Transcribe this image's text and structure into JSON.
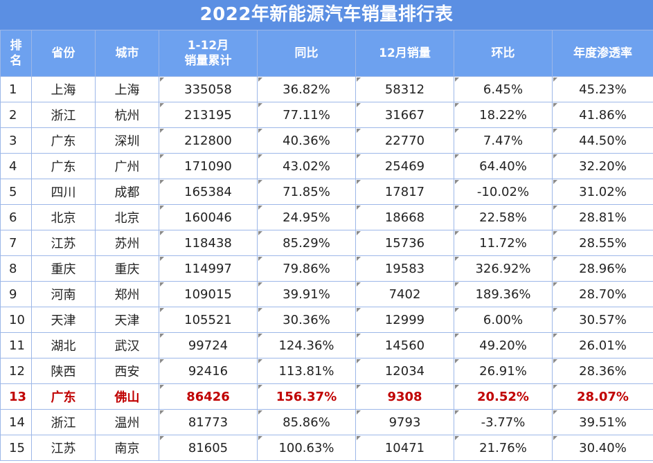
{
  "title": "2022年新能源汽车销量排行表",
  "headers": {
    "rank": [
      "排",
      "名"
    ],
    "province": "省份",
    "city": "城市",
    "cumulative": [
      "1-12月",
      "销量累计"
    ],
    "yoy": "同比",
    "dec_sales": "12月销量",
    "mom": "环比",
    "penetration": "年度渗透率"
  },
  "rows": [
    {
      "rank": "1",
      "province": "上海",
      "city": "上海",
      "cumulative": "335058",
      "yoy": "36.82%",
      "dec_sales": "58312",
      "mom": "6.45%",
      "penetration": "45.23%"
    },
    {
      "rank": "2",
      "province": "浙江",
      "city": "杭州",
      "cumulative": "213195",
      "yoy": "77.11%",
      "dec_sales": "31667",
      "mom": "18.22%",
      "penetration": "41.86%"
    },
    {
      "rank": "3",
      "province": "广东",
      "city": "深圳",
      "cumulative": "212800",
      "yoy": "40.36%",
      "dec_sales": "22770",
      "mom": "7.47%",
      "penetration": "44.50%"
    },
    {
      "rank": "4",
      "province": "广东",
      "city": "广州",
      "cumulative": "171090",
      "yoy": "43.02%",
      "dec_sales": "25469",
      "mom": "64.40%",
      "penetration": "32.20%"
    },
    {
      "rank": "5",
      "province": "四川",
      "city": "成都",
      "cumulative": "165384",
      "yoy": "71.85%",
      "dec_sales": "17817",
      "mom": "-10.02%",
      "penetration": "31.02%"
    },
    {
      "rank": "6",
      "province": "北京",
      "city": "北京",
      "cumulative": "160046",
      "yoy": "24.95%",
      "dec_sales": "18668",
      "mom": "22.58%",
      "penetration": "28.81%"
    },
    {
      "rank": "7",
      "province": "江苏",
      "city": "苏州",
      "cumulative": "118438",
      "yoy": "85.29%",
      "dec_sales": "15736",
      "mom": "11.72%",
      "penetration": "28.55%"
    },
    {
      "rank": "8",
      "province": "重庆",
      "city": "重庆",
      "cumulative": "114997",
      "yoy": "79.86%",
      "dec_sales": "19583",
      "mom": "326.92%",
      "penetration": "28.96%"
    },
    {
      "rank": "9",
      "province": "河南",
      "city": "郑州",
      "cumulative": "109015",
      "yoy": "39.91%",
      "dec_sales": "7402",
      "mom": "189.36%",
      "penetration": "28.70%"
    },
    {
      "rank": "10",
      "province": "天津",
      "city": "天津",
      "cumulative": "105521",
      "yoy": "30.36%",
      "dec_sales": "12999",
      "mom": "6.00%",
      "penetration": "30.57%"
    },
    {
      "rank": "11",
      "province": "湖北",
      "city": "武汉",
      "cumulative": "99724",
      "yoy": "124.36%",
      "dec_sales": "14560",
      "mom": "49.20%",
      "penetration": "26.01%"
    },
    {
      "rank": "12",
      "province": "陕西",
      "city": "西安",
      "cumulative": "92416",
      "yoy": "113.81%",
      "dec_sales": "12034",
      "mom": "26.91%",
      "penetration": "28.36%"
    },
    {
      "rank": "13",
      "province": "广东",
      "city": "佛山",
      "cumulative": "86426",
      "yoy": "156.37%",
      "dec_sales": "9308",
      "mom": "20.52%",
      "penetration": "28.07%",
      "highlight": true
    },
    {
      "rank": "14",
      "province": "浙江",
      "city": "温州",
      "cumulative": "81773",
      "yoy": "85.86%",
      "dec_sales": "9793",
      "mom": "-3.77%",
      "penetration": "39.51%"
    },
    {
      "rank": "15",
      "province": "江苏",
      "city": "南京",
      "cumulative": "81605",
      "yoy": "100.63%",
      "dec_sales": "10471",
      "mom": "21.76%",
      "penetration": "30.40%"
    }
  ],
  "colors": {
    "title_bg": "#5b8fe3",
    "header_bg": "#6da1ef",
    "border": "#9cb7e8",
    "highlight_text": "#c00000"
  }
}
